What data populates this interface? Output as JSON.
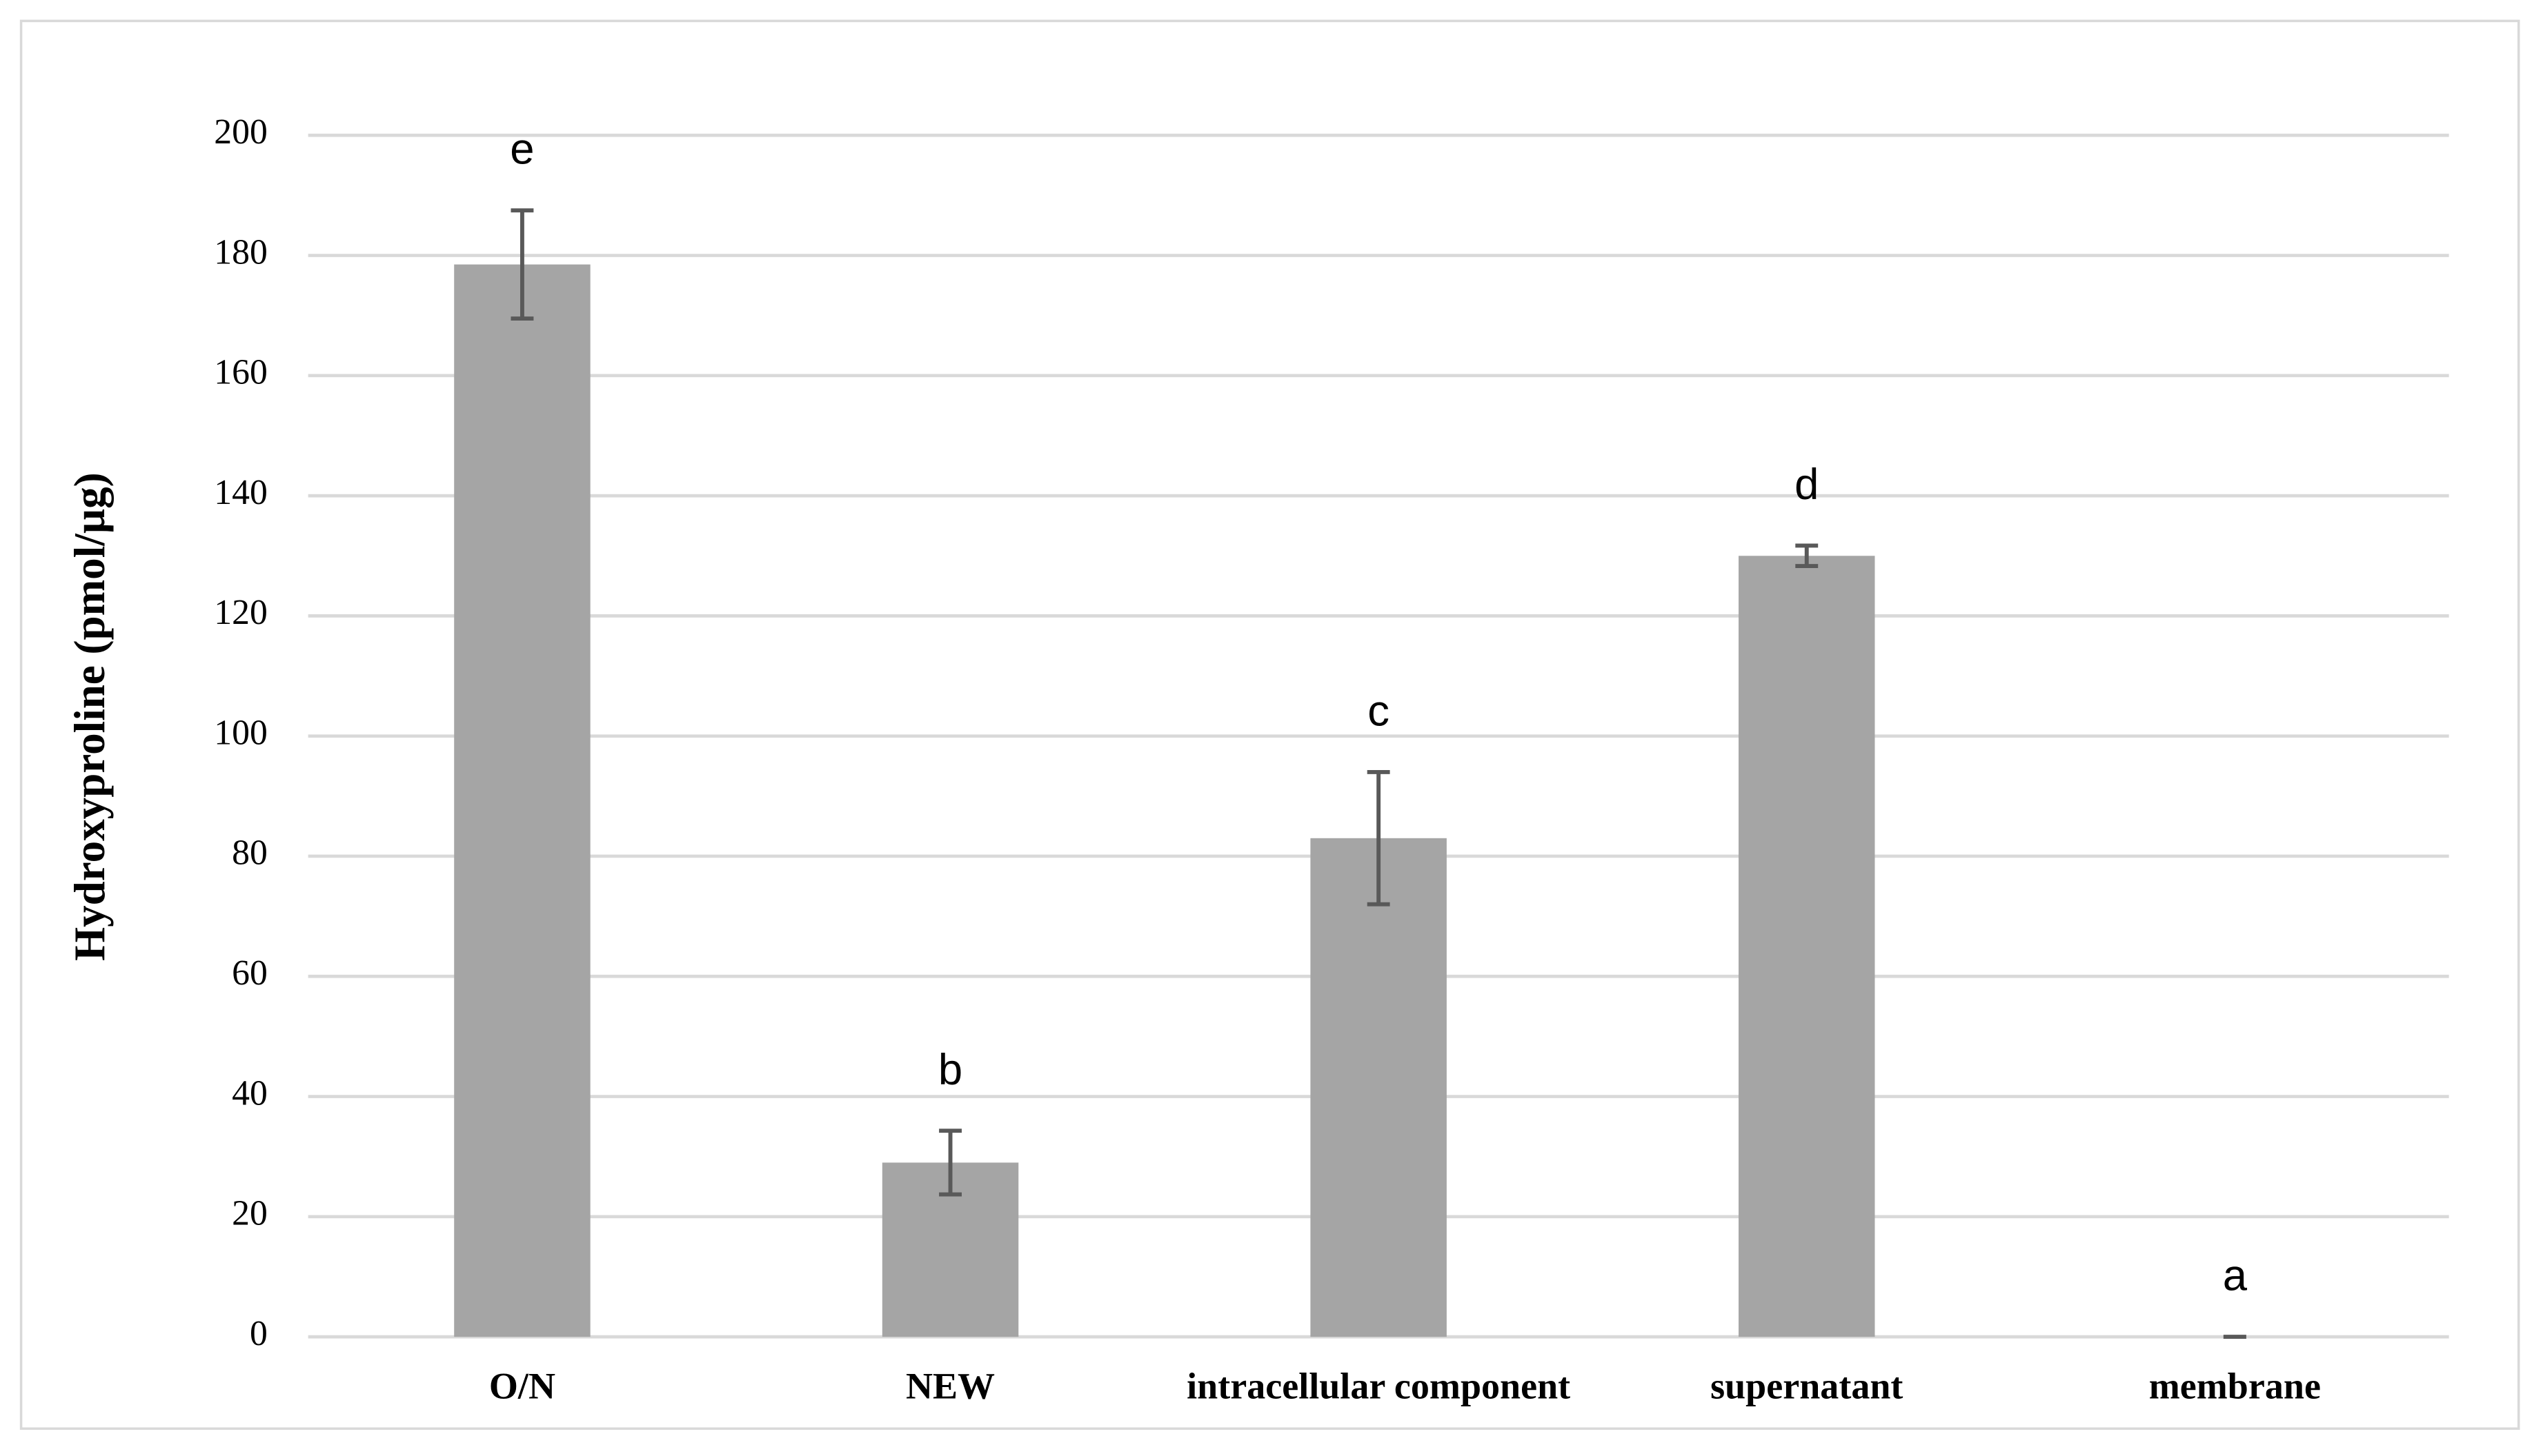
{
  "chart_data": {
    "type": "bar",
    "y_label": "Hydroxyproline  (pmol/µg)",
    "categories": [
      "O/N",
      "NEW",
      "intracellular component",
      "supernatant",
      "membrane"
    ],
    "values": [
      178.5,
      29,
      83,
      130,
      0
    ],
    "errors": [
      9,
      5.3,
      11,
      1.7,
      0
    ],
    "letters": [
      "e",
      "b",
      "c",
      "d",
      "a"
    ],
    "color": "#a5a5a5",
    "ylim": [
      0,
      200
    ],
    "yticks": [
      0,
      20,
      40,
      60,
      80,
      100,
      120,
      140,
      160,
      180,
      200
    ],
    "grid": true
  }
}
